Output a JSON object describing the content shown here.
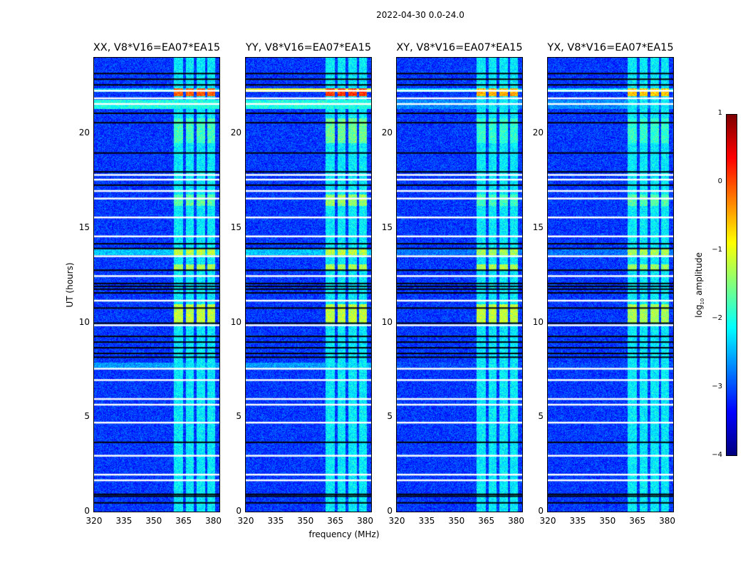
{
  "suptitle": "2022-04-30 0.0-24.0",
  "chart_data": {
    "type": "heatmap",
    "xlabel": "frequency (MHz)",
    "ylabel": "UT (hours)",
    "xlim": [
      320,
      383
    ],
    "ylim": [
      0,
      24
    ],
    "xticks": [
      "320",
      "335",
      "350",
      "365",
      "380"
    ],
    "xtick_values": [
      320,
      335,
      350,
      365,
      380
    ],
    "yticks": [
      "0",
      "5",
      "10",
      "15",
      "20"
    ],
    "ytick_values": [
      0,
      5,
      10,
      15,
      20
    ],
    "panels": [
      {
        "title": "XX, V8*V16=EA07*EA15",
        "pol": "XX"
      },
      {
        "title": "YY, V8*V16=EA07*EA15",
        "pol": "YY"
      },
      {
        "title": "XY, V8*V16=EA07*EA15",
        "pol": "XY"
      },
      {
        "title": "YX, V8*V16=EA07*EA15",
        "pol": "YX"
      }
    ],
    "colorbar": {
      "label_prefix": "log",
      "label_sub": "10",
      "label_suffix": " amplitude",
      "colormap": "jet",
      "range": [
        -4,
        1
      ],
      "ticks": [
        "1",
        "0",
        "−1",
        "−2",
        "−3",
        "−4"
      ],
      "tick_values": [
        1,
        0,
        -1,
        -2,
        -3,
        -4
      ]
    },
    "background_log_amplitude": -3.1,
    "rfi_channels_mhz": [
      [
        360,
        364.6
      ],
      [
        366,
        370
      ],
      [
        371.3,
        375.7
      ],
      [
        376.8,
        380.7
      ]
    ],
    "rfi_channel_log_amplitude": -2.2,
    "events": [
      {
        "ut": [
          22.0,
          22.4
        ],
        "channels_only": true,
        "XX": -0.1,
        "YY": 0.1,
        "XY": -0.5,
        "YX": -0.6
      },
      {
        "ut": [
          22.2,
          22.4
        ],
        "channels_only": false,
        "XX": -2.4,
        "YY": -1.0,
        "XY": -2.3,
        "YX": -2.3
      },
      {
        "ut": [
          21.3,
          21.8
        ],
        "channels_only": false,
        "XX": -2.0,
        "YY": -2.0,
        "XY": -2.7,
        "YX": -2.7
      },
      {
        "ut": [
          19.5,
          20.8
        ],
        "channels_only": true,
        "XX": -1.8,
        "YY": -1.6,
        "XY": -1.9,
        "YX": -1.9
      },
      {
        "ut": [
          16.2,
          16.8
        ],
        "channels_only": true,
        "XX": -1.7,
        "YY": -1.4,
        "XY": -1.8,
        "YX": -1.7
      },
      {
        "ut": [
          13.6,
          13.9
        ],
        "channels_only": true,
        "XX": -1.2,
        "YY": -1.2,
        "XY": -1.3,
        "YX": -1.3
      },
      {
        "ut": [
          13.6,
          13.9
        ],
        "channels_only": false,
        "XX": -2.4,
        "YY": -2.4,
        "XY": -2.8,
        "YX": -2.8
      },
      {
        "ut": [
          12.8,
          13.1
        ],
        "channels_only": true,
        "XX": -1.3,
        "YY": -1.3,
        "XY": -1.3,
        "YX": -1.4
      },
      {
        "ut": [
          10.0,
          11.0
        ],
        "channels_only": true,
        "XX": -1.2,
        "YY": -1.2,
        "XY": -1.2,
        "YX": -1.3
      },
      {
        "ut": [
          7.6,
          7.9
        ],
        "channels_only": false,
        "XX": -2.6,
        "YY": -2.6,
        "XY": -3.0,
        "YX": -3.0
      }
    ],
    "flagged_black_ut": [
      23.2,
      22.9,
      22.6,
      21.1,
      20.6,
      19.0,
      18.0,
      17.3,
      14.2,
      13.95,
      12.8,
      12.1,
      11.95,
      11.8,
      11.6,
      10.8,
      10.0,
      9.3,
      9.0,
      8.7,
      8.4,
      8.2,
      3.7,
      0.95,
      0.85,
      0.5
    ],
    "gaps_white_ut": [
      22.3,
      21.9,
      21.6,
      17.85,
      17.6,
      17.0,
      16.6,
      15.6,
      14.6,
      13.55,
      12.5,
      11.2,
      9.9,
      7.6,
      7.0,
      6.0,
      5.7,
      4.75,
      3.0,
      2.0,
      1.7
    ]
  }
}
